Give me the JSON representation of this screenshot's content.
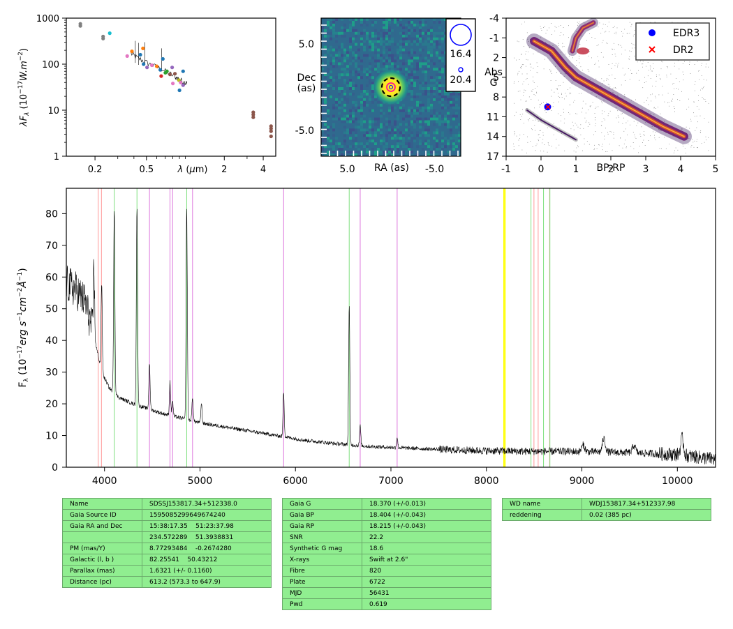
{
  "colors": {
    "table_bg": "#90ee90",
    "line_red": "#ff9999",
    "line_green": "#7fe07f",
    "line_magenta": "#dd77dd",
    "line_yellow": "#ffff00",
    "spectrum": "#000000"
  },
  "chart_data": [
    {
      "type": "scatter",
      "panel": "sed",
      "ylabel": "λF_λ (10^-17 W.m^-2)",
      "xlabel": "λ (μm)",
      "x_scale": "log",
      "y_scale": "log",
      "xlim": [
        0.12,
        5.0
      ],
      "ylim": [
        1,
        1000
      ],
      "x_ticks": [
        "0.2",
        "0.5",
        "2",
        "4"
      ],
      "x_tick_values": [
        0.2,
        0.5,
        2,
        4
      ],
      "y_ticks": [
        "1",
        "10",
        "100",
        "1000"
      ],
      "y_tick_values": [
        1,
        10,
        100,
        1000
      ],
      "points": [
        {
          "x": 0.154,
          "y": 750,
          "color": "#7f7f7f"
        },
        {
          "x": 0.154,
          "y": 680,
          "color": "#7f7f7f"
        },
        {
          "x": 0.231,
          "y": 400,
          "color": "#7f7f7f"
        },
        {
          "x": 0.231,
          "y": 360,
          "color": "#7f7f7f"
        },
        {
          "x": 0.26,
          "y": 470,
          "color": "#17becf"
        },
        {
          "x": 0.355,
          "y": 150,
          "color": "#e377c2"
        },
        {
          "x": 0.386,
          "y": 190,
          "color": "#ff7f0e"
        },
        {
          "x": 0.448,
          "y": 160,
          "color": "#1f77b4"
        },
        {
          "x": 0.47,
          "y": 220,
          "color": "#ff7f0e"
        },
        {
          "x": 0.475,
          "y": 100,
          "color": "#1f77b4"
        },
        {
          "x": 0.505,
          "y": 85,
          "color": "#9467bd"
        },
        {
          "x": 0.55,
          "y": 95,
          "color": "#e377c2"
        },
        {
          "x": 0.6,
          "y": 90,
          "color": "#ff7f0e"
        },
        {
          "x": 0.64,
          "y": 75,
          "color": "#1f77b4"
        },
        {
          "x": 0.65,
          "y": 55,
          "color": "#d62728"
        },
        {
          "x": 0.67,
          "y": 130,
          "color": "#1f77b4"
        },
        {
          "x": 0.7,
          "y": 65,
          "color": "#2ca02c"
        },
        {
          "x": 0.72,
          "y": 70,
          "color": "#2ca02c"
        },
        {
          "x": 0.76,
          "y": 60,
          "color": "#8c564b"
        },
        {
          "x": 0.79,
          "y": 85,
          "color": "#9467bd"
        },
        {
          "x": 0.8,
          "y": 38,
          "color": "#e377c2"
        },
        {
          "x": 0.83,
          "y": 62,
          "color": "#8c564b"
        },
        {
          "x": 0.89,
          "y": 45,
          "color": "#bcbd22"
        },
        {
          "x": 0.9,
          "y": 27,
          "color": "#1f77b4"
        },
        {
          "x": 0.92,
          "y": 40,
          "color": "#e377c2"
        },
        {
          "x": 0.96,
          "y": 70,
          "color": "#1f77b4"
        },
        {
          "x": 0.96,
          "y": 35,
          "color": "#9467bd"
        },
        {
          "x": 3.35,
          "y": 9.0,
          "color": "#8c564b"
        },
        {
          "x": 3.35,
          "y": 8.0,
          "color": "#8c564b"
        },
        {
          "x": 3.35,
          "y": 7.0,
          "color": "#8c564b"
        },
        {
          "x": 4.6,
          "y": 4.5,
          "color": "#8c564b"
        },
        {
          "x": 4.6,
          "y": 4.0,
          "color": "#8c564b"
        },
        {
          "x": 4.6,
          "y": 3.5,
          "color": "#8c564b"
        },
        {
          "x": 4.6,
          "y": 2.7,
          "color": "#8c564b"
        }
      ],
      "spectrum_curve": [
        [
          0.38,
          170
        ],
        [
          0.42,
          140
        ],
        [
          0.48,
          115
        ],
        [
          0.55,
          95
        ],
        [
          0.65,
          78
        ],
        [
          0.75,
          63
        ],
        [
          0.85,
          52
        ],
        [
          0.92,
          45
        ],
        [
          1.0,
          40
        ],
        [
          1.03,
          38
        ]
      ]
    },
    {
      "type": "heatmap",
      "panel": "image",
      "xlabel": "RA (as)",
      "ylabel": "Dec\n(as)",
      "x_ticks": [
        "5.0",
        "-5.0"
      ],
      "x_tick_values": [
        5.0,
        -5.0
      ],
      "y_ticks": [
        "5.0",
        "-5.0"
      ],
      "y_tick_values": [
        5.0,
        -5.0
      ],
      "xlim": [
        8.0,
        -8.0
      ],
      "ylim": [
        -8.0,
        8.0
      ],
      "source_position": [
        0.0,
        0.0
      ],
      "legend_entries": [
        "16.4",
        "20.4"
      ]
    },
    {
      "type": "scatter",
      "panel": "hr_diagram",
      "xlabel": "BP-RP",
      "ylabel": "Abs\nG",
      "xlim": [
        -1,
        5
      ],
      "ylim": [
        17,
        -4
      ],
      "x_ticks": [
        "-1",
        "0",
        "1",
        "2",
        "3",
        "4",
        "5"
      ],
      "x_tick_values": [
        -1,
        0,
        1,
        2,
        3,
        4,
        5
      ],
      "y_ticks": [
        "-4",
        "-1",
        "2",
        "5",
        "8",
        "11",
        "14",
        "17"
      ],
      "y_tick_values": [
        -4,
        -1,
        2,
        5,
        8,
        11,
        14,
        17
      ],
      "series": [
        {
          "name": "EDR3",
          "marker": "circle",
          "color": "#0000ff",
          "x": [
            0.19
          ],
          "y": [
            9.5
          ]
        },
        {
          "name": "DR2",
          "marker": "x",
          "color": "#ff0000",
          "x": [
            0.2
          ],
          "y": [
            9.5
          ]
        }
      ],
      "main_sequence": [
        [
          -0.2,
          -0.5
        ],
        [
          0.3,
          1.0
        ],
        [
          0.7,
          3.5
        ],
        [
          1.0,
          5.0
        ],
        [
          1.5,
          6.5
        ],
        [
          2.0,
          8.0
        ],
        [
          2.5,
          9.5
        ],
        [
          3.0,
          11.0
        ],
        [
          3.5,
          12.5
        ],
        [
          4.1,
          14.0
        ]
      ],
      "giant_branch": [
        [
          0.9,
          1.0
        ],
        [
          1.0,
          -1.0
        ],
        [
          1.2,
          -2.5
        ],
        [
          1.5,
          -3.3
        ]
      ],
      "wd_sequence": [
        [
          -0.4,
          10.0
        ],
        [
          0.0,
          11.5
        ],
        [
          0.5,
          13.0
        ],
        [
          1.0,
          14.5
        ]
      ],
      "legend_location": "upper right"
    },
    {
      "type": "line",
      "panel": "spectrum",
      "ylabel": "F_λ (10^-17 erg s^-1 cm^-2 Å^-1)",
      "xlim": [
        3600,
        10400
      ],
      "ylim": [
        0,
        88
      ],
      "x_ticks": [
        "4000",
        "5000",
        "6000",
        "7000",
        "8000",
        "9000",
        "10000"
      ],
      "x_tick_values": [
        4000,
        5000,
        6000,
        7000,
        8000,
        9000,
        10000
      ],
      "y_ticks": [
        "0",
        "10",
        "20",
        "30",
        "40",
        "50",
        "60",
        "70",
        "80"
      ],
      "y_tick_values": [
        0,
        10,
        20,
        30,
        40,
        50,
        60,
        70,
        80
      ],
      "continuum": [
        [
          3600,
          58
        ],
        [
          3700,
          56
        ],
        [
          3800,
          52
        ],
        [
          3900,
          40
        ],
        [
          3970,
          30
        ],
        [
          4050,
          25
        ],
        [
          4150,
          22
        ],
        [
          4300,
          20
        ],
        [
          4450,
          18.5
        ],
        [
          4600,
          17
        ],
        [
          4800,
          15.5
        ],
        [
          5000,
          14
        ],
        [
          5200,
          13
        ],
        [
          5500,
          11.5
        ],
        [
          5800,
          10
        ],
        [
          6100,
          8.5
        ],
        [
          6400,
          7.5
        ],
        [
          6800,
          6.5
        ],
        [
          7200,
          6.0
        ],
        [
          7600,
          5.5
        ],
        [
          8000,
          5.2
        ],
        [
          8400,
          5.0
        ],
        [
          8800,
          5.0
        ],
        [
          9200,
          4.8
        ],
        [
          9600,
          4.5
        ],
        [
          10000,
          4.0
        ],
        [
          10400,
          2.5
        ]
      ],
      "emission_lines": [
        {
          "x": 3889,
          "peak": 65
        },
        {
          "x": 3970,
          "peak": 58
        },
        {
          "x": 4102,
          "peak": 82
        },
        {
          "x": 4340,
          "peak": 82
        },
        {
          "x": 4471,
          "peak": 33
        },
        {
          "x": 4686,
          "peak": 27
        },
        {
          "x": 4713,
          "peak": 21
        },
        {
          "x": 4861,
          "peak": 82
        },
        {
          "x": 4922,
          "peak": 22
        },
        {
          "x": 5015,
          "peak": 20
        },
        {
          "x": 5876,
          "peak": 24
        },
        {
          "x": 6563,
          "peak": 51
        },
        {
          "x": 6678,
          "peak": 13
        },
        {
          "x": 7065,
          "peak": 9.5
        },
        {
          "x": 9015,
          "peak": 7
        },
        {
          "x": 9230,
          "peak": 9
        },
        {
          "x": 9546,
          "peak": 7
        },
        {
          "x": 10050,
          "peak": 9
        }
      ],
      "vertical_lines": [
        {
          "x": 3934,
          "color": "#ff9999"
        },
        {
          "x": 3968,
          "color": "#ff9999"
        },
        {
          "x": 4102,
          "color": "#7fe07f"
        },
        {
          "x": 4340,
          "color": "#7fe07f"
        },
        {
          "x": 4471,
          "color": "#dd77dd"
        },
        {
          "x": 4686,
          "color": "#dd77dd"
        },
        {
          "x": 4713,
          "color": "#dd77dd"
        },
        {
          "x": 4861,
          "color": "#7fe07f"
        },
        {
          "x": 4922,
          "color": "#dd77dd"
        },
        {
          "x": 5876,
          "color": "#dd77dd"
        },
        {
          "x": 6563,
          "color": "#7fe07f"
        },
        {
          "x": 6678,
          "color": "#dd77dd"
        },
        {
          "x": 7065,
          "color": "#dd77dd"
        },
        {
          "x": 8183,
          "color": "#ffff00"
        },
        {
          "x": 8195,
          "color": "#ffff00"
        },
        {
          "x": 8467,
          "color": "#7fe07f"
        },
        {
          "x": 8498,
          "color": "#ff9999"
        },
        {
          "x": 8542,
          "color": "#ff9999"
        },
        {
          "x": 8598,
          "color": "#7fe07f"
        },
        {
          "x": 8662,
          "color": "#ff9999"
        },
        {
          "x": 8665,
          "color": "#7fe07f"
        }
      ]
    }
  ],
  "tables": {
    "left": [
      {
        "key": "Name",
        "value": "SDSSJ153817.34+512338.0"
      },
      {
        "key": "Gaia Source ID",
        "value": "1595085299649674240"
      },
      {
        "key": "Gaia RA and Dec",
        "value": "15:38:17.35    51:23:37.98"
      },
      {
        "key": "",
        "value": "234.572289    51.3938831"
      },
      {
        "key": "PM (mas/Y)",
        "value": "8.77293484    -0.2674280"
      },
      {
        "key": "Galactic (l, b )",
        "value": "82.25541    50.43212"
      },
      {
        "key": "Parallax (mas)",
        "value": "1.6321 (+/- 0.1160)"
      },
      {
        "key": "Distance (pc)",
        "value": "613.2 (573.3 to 647.9)"
      }
    ],
    "middle": [
      {
        "key": "Gaia G",
        "value": "18.370 (+/-0.013)"
      },
      {
        "key": "Gaia BP",
        "value": "18.404 (+/-0.043)"
      },
      {
        "key": "Gaia RP",
        "value": "18.215 (+/-0.043)"
      },
      {
        "key": "SNR",
        "value": "22.2"
      },
      {
        "key": "Synthetic G mag",
        "value": "18.6"
      },
      {
        "key": "X-rays",
        "value": "Swift at 2.6\""
      },
      {
        "key": "Fibre",
        "value": "820"
      },
      {
        "key": "Plate",
        "value": "6722"
      },
      {
        "key": "MJD",
        "value": "56431"
      },
      {
        "key": "Pwd",
        "value": "0.619"
      }
    ],
    "right": [
      {
        "key": "WD name",
        "value": "WDJ153817.34+512337.98"
      },
      {
        "key": "reddening",
        "value": "0.02 (385 pc)"
      }
    ]
  }
}
